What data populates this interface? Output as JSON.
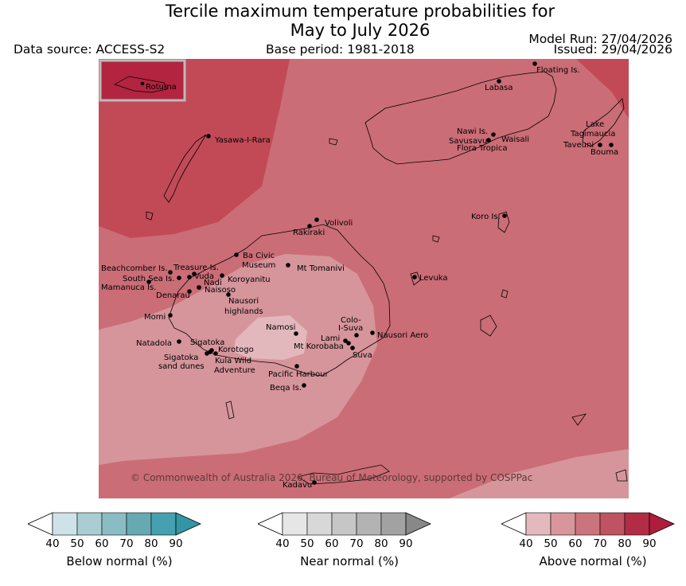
{
  "title_line1": "Tercile maximum temperature probabilities for",
  "title_line2": "May to July 2026",
  "data_source": "Data source: ACCESS-S2",
  "base_period": "Base period: 1981-2018",
  "model_run": "Model Run: 27/04/2026",
  "issued": "Issued: 29/04/2026",
  "copyright": "© Commonwealth of Australia 2026, Bureau of Meteorology, supported by COSPPac",
  "inset_label": "Rotuma",
  "places": [
    {
      "id": "floating-is",
      "label": "Floating Is."
    },
    {
      "id": "labasa",
      "label": "Labasa"
    },
    {
      "id": "yasawa-i-rara",
      "label": "Yasawa-I-Rara"
    },
    {
      "id": "nawi-is",
      "label": "Nawi Is."
    },
    {
      "id": "savusavu",
      "label": "Savusavu"
    },
    {
      "id": "waisali",
      "label": "Waisali"
    },
    {
      "id": "flora-tropica",
      "label": "Flora Tropica"
    },
    {
      "id": "lake-tagimaucia-1",
      "label": "Lake"
    },
    {
      "id": "lake-tagimaucia-2",
      "label": "Tagimaucia"
    },
    {
      "id": "taveuni",
      "label": "Taveuni"
    },
    {
      "id": "bouma",
      "label": "Bouma"
    },
    {
      "id": "koro-is",
      "label": "Koro Is."
    },
    {
      "id": "volivoli",
      "label": "Volivoli"
    },
    {
      "id": "rakiraki",
      "label": "Rakiraki"
    },
    {
      "id": "ba-civic-museum-1",
      "label": "Ba Civic"
    },
    {
      "id": "ba-civic-museum-2",
      "label": "Museum"
    },
    {
      "id": "mt-tomanivi",
      "label": "Mt Tomanivi"
    },
    {
      "id": "beachcomber-is",
      "label": "Beachcomber Is."
    },
    {
      "id": "treasure-is",
      "label": "Treasure Is."
    },
    {
      "id": "south-sea-is",
      "label": "South Sea Is."
    },
    {
      "id": "vuda",
      "label": "Vuda"
    },
    {
      "id": "koroyanitu",
      "label": "Koroyanitu"
    },
    {
      "id": "nadi",
      "label": "Nadi"
    },
    {
      "id": "mamanuca-is",
      "label": "Mamanuca Is."
    },
    {
      "id": "naisoso",
      "label": "Naisoso"
    },
    {
      "id": "denarau",
      "label": "Denarau"
    },
    {
      "id": "levuka",
      "label": "Levuka"
    },
    {
      "id": "nausori-highlands-1",
      "label": "Nausori"
    },
    {
      "id": "nausori-highlands-2",
      "label": "highlands"
    },
    {
      "id": "momi",
      "label": "Momi"
    },
    {
      "id": "colo-i-suva-1",
      "label": "Colo-"
    },
    {
      "id": "colo-i-suva-2",
      "label": "I-Suva"
    },
    {
      "id": "namosi",
      "label": "Namosi"
    },
    {
      "id": "nausori-aero",
      "label": "Nausori Aero"
    },
    {
      "id": "lami",
      "label": "Lami"
    },
    {
      "id": "natadola",
      "label": "Natadola"
    },
    {
      "id": "sigatoka",
      "label": "Sigatoka"
    },
    {
      "id": "mt-korobaba",
      "label": "Mt Korobaba"
    },
    {
      "id": "korotogo",
      "label": "Korotogo"
    },
    {
      "id": "suva",
      "label": "Suva"
    },
    {
      "id": "sigatoka-sand-dunes-1",
      "label": "Sigatoka"
    },
    {
      "id": "sigatoka-sand-dunes-2",
      "label": "sand dunes"
    },
    {
      "id": "kula-wild-adventure-1",
      "label": "Kula Wild"
    },
    {
      "id": "kula-wild-adventure-2",
      "label": "Adventure"
    },
    {
      "id": "pacific-harbour",
      "label": "Pacific Harbour"
    },
    {
      "id": "beqa-is",
      "label": "Beqa Is."
    },
    {
      "id": "kadavu",
      "label": "Kadavu"
    }
  ],
  "colorbars": [
    {
      "id": "below",
      "title": "Below normal (%)",
      "ticks": [
        "40",
        "50",
        "60",
        "70",
        "80",
        "90"
      ],
      "colors": [
        "#ffffff",
        "#cde3e8",
        "#a9cdd2",
        "#8abcc3",
        "#67a9b3",
        "#45a1b0",
        "#3396a6"
      ]
    },
    {
      "id": "near",
      "title": "Near normal (%)",
      "ticks": [
        "40",
        "50",
        "60",
        "70",
        "80",
        "90"
      ],
      "colors": [
        "#ffffff",
        "#e6e6e6",
        "#d8d8d8",
        "#c6c6c6",
        "#b3b3b3",
        "#a2a2a2",
        "#888888"
      ]
    },
    {
      "id": "above",
      "title": "Above normal (%)",
      "ticks": [
        "40",
        "50",
        "60",
        "70",
        "80",
        "90"
      ],
      "colors": [
        "#ffffff",
        "#e4b9be",
        "#d8959c",
        "#cb747d",
        "#bf5361",
        "#b22c45",
        "#b01c3c"
      ]
    }
  ]
}
